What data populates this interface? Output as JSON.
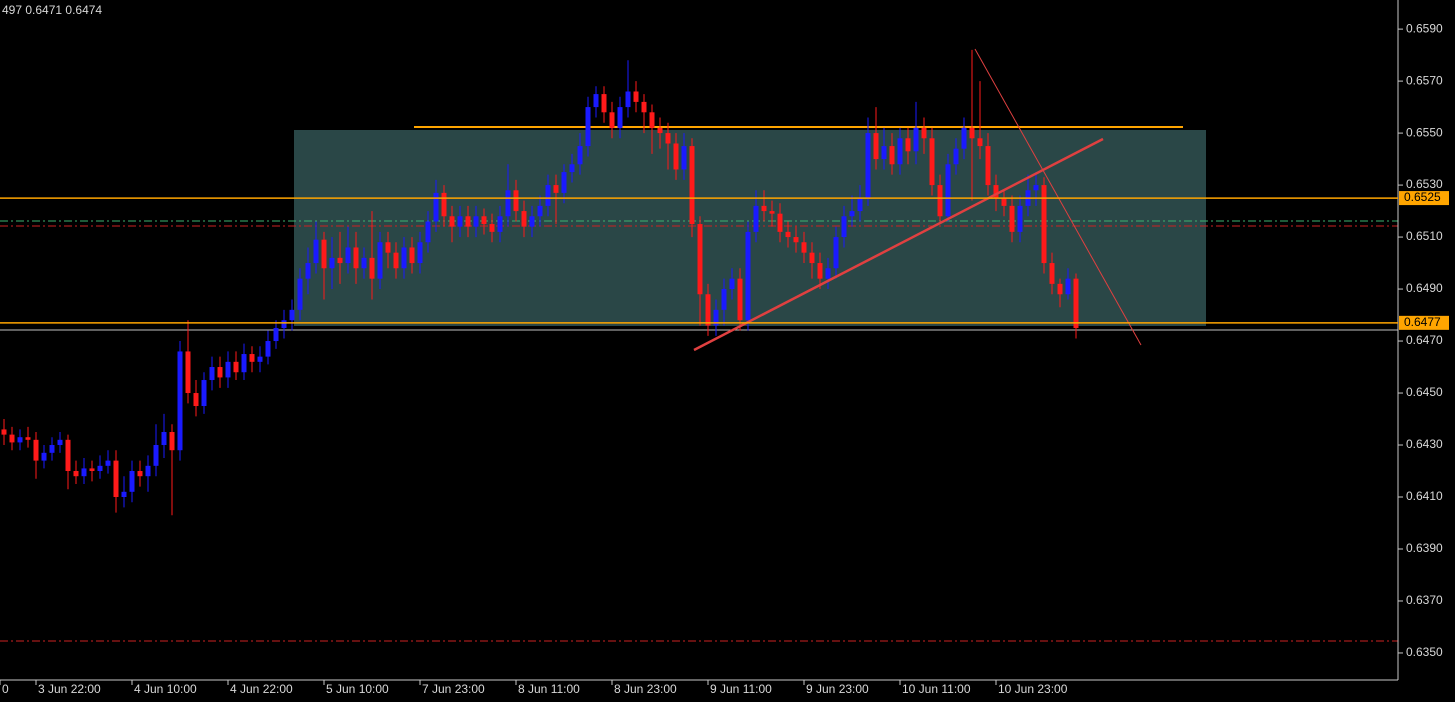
{
  "chart_data": {
    "type": "candlestick",
    "header": "497 0.6471 0.6474",
    "bull_color": "#1a1aff",
    "bear_color": "#ff1a1a",
    "ylim": [
      0.63396,
      0.66012
    ],
    "yticks": [
      {
        "value": 0.659,
        "label": "0.6590"
      },
      {
        "value": 0.657,
        "label": "0.6570"
      },
      {
        "value": 0.655,
        "label": "0.6550"
      },
      {
        "value": 0.653,
        "label": "0.6530"
      },
      {
        "value": 0.651,
        "label": "0.6510"
      },
      {
        "value": 0.649,
        "label": "0.6490"
      },
      {
        "value": 0.647,
        "label": "0.6470"
      },
      {
        "value": 0.645,
        "label": "0.6450"
      },
      {
        "value": 0.643,
        "label": "0.6430"
      },
      {
        "value": 0.641,
        "label": "0.6410"
      },
      {
        "value": 0.639,
        "label": "0.6390"
      },
      {
        "value": 0.637,
        "label": "0.6370"
      },
      {
        "value": 0.635,
        "label": "0.6350"
      }
    ],
    "xticks": [
      {
        "value": -0.5,
        "label": "0"
      },
      {
        "value": 4,
        "label": "3 Jun 22:00"
      },
      {
        "value": 16,
        "label": "4 Jun 10:00"
      },
      {
        "value": 28,
        "label": "4 Jun 22:00"
      },
      {
        "value": 40,
        "label": "5 Jun 10:00"
      },
      {
        "value": 52,
        "label": "7 Jun 23:00"
      },
      {
        "value": 64,
        "label": "8 Jun 11:00"
      },
      {
        "value": 76,
        "label": "8 Jun 23:00"
      },
      {
        "value": 88,
        "label": "9 Jun 11:00"
      },
      {
        "value": 100,
        "label": "9 Jun 23:00"
      },
      {
        "value": 112,
        "label": "10 Jun 11:00"
      },
      {
        "value": 124,
        "label": "10 Jun 23:00"
      }
    ],
    "price_lines": [
      0.6525,
      0.6477
    ],
    "price_line_color": "#ffa500",
    "open": [
      0.6436,
      0.6434,
      0.6431,
      0.6433,
      0.6432,
      0.6424,
      0.6427,
      0.643,
      0.6432,
      0.642,
      0.6418,
      0.6421,
      0.642,
      0.6422,
      0.6424,
      0.641,
      0.6412,
      0.642,
      0.6418,
      0.6422,
      0.643,
      0.6435,
      0.6428,
      0.6466,
      0.645,
      0.6445,
      0.6455,
      0.646,
      0.6456,
      0.6462,
      0.6458,
      0.6465,
      0.6462,
      0.6464,
      0.647,
      0.6475,
      0.6478,
      0.6482,
      0.6494,
      0.65,
      0.6509,
      0.6498,
      0.6502,
      0.65,
      0.6506,
      0.6498,
      0.6502,
      0.6494,
      0.6508,
      0.6504,
      0.6498,
      0.6506,
      0.65,
      0.6508,
      0.6516,
      0.6527,
      0.6518,
      0.6514,
      0.6518,
      0.6514,
      0.6518,
      0.6515,
      0.6512,
      0.6518,
      0.6528,
      0.652,
      0.6514,
      0.6518,
      0.6522,
      0.653,
      0.6527,
      0.6535,
      0.6538,
      0.6545,
      0.656,
      0.6565,
      0.6558,
      0.6552,
      0.656,
      0.6566,
      0.6562,
      0.6558,
      0.6552,
      0.655,
      0.6546,
      0.6536,
      0.6545,
      0.6515,
      0.6488,
      0.6476,
      0.6482,
      0.649,
      0.6494,
      0.6478,
      0.6512,
      0.6522,
      0.652,
      0.6519,
      0.6512,
      0.651,
      0.6508,
      0.6504,
      0.65,
      0.6494,
      0.6498,
      0.651,
      0.6518,
      0.652,
      0.6525,
      0.655,
      0.654,
      0.6545,
      0.6538,
      0.6548,
      0.6543,
      0.6552,
      0.6548,
      0.653,
      0.6518,
      0.6538,
      0.6544,
      0.6552,
      0.6548,
      0.6545,
      0.653,
      0.6525,
      0.6522,
      0.6512,
      0.6522,
      0.6528,
      0.653,
      0.65,
      0.6492,
      0.6488,
      0.6494
    ],
    "high": [
      0.644,
      0.6437,
      0.6436,
      0.6437,
      0.6435,
      0.643,
      0.6433,
      0.6435,
      0.6434,
      0.6424,
      0.6425,
      0.6424,
      0.6426,
      0.6428,
      0.6428,
      0.6418,
      0.6424,
      0.6424,
      0.6426,
      0.6438,
      0.6442,
      0.6438,
      0.647,
      0.6478,
      0.6455,
      0.6458,
      0.6464,
      0.6464,
      0.6466,
      0.6466,
      0.6469,
      0.6468,
      0.6468,
      0.6474,
      0.6478,
      0.6482,
      0.6486,
      0.6498,
      0.6506,
      0.6516,
      0.6512,
      0.651,
      0.6512,
      0.6514,
      0.6512,
      0.6506,
      0.652,
      0.6512,
      0.6512,
      0.6508,
      0.651,
      0.651,
      0.6512,
      0.652,
      0.6532,
      0.653,
      0.6522,
      0.6522,
      0.6522,
      0.6522,
      0.6521,
      0.6519,
      0.6522,
      0.6538,
      0.6532,
      0.6524,
      0.6522,
      0.6526,
      0.6534,
      0.6534,
      0.6538,
      0.6542,
      0.655,
      0.6564,
      0.6568,
      0.6568,
      0.6562,
      0.6564,
      0.6578,
      0.657,
      0.6565,
      0.6561,
      0.6556,
      0.6554,
      0.655,
      0.655,
      0.6548,
      0.6518,
      0.6492,
      0.6486,
      0.6494,
      0.6498,
      0.6498,
      0.6516,
      0.6528,
      0.6528,
      0.6524,
      0.6523,
      0.6516,
      0.6514,
      0.6512,
      0.6508,
      0.6504,
      0.6502,
      0.6514,
      0.6522,
      0.6526,
      0.653,
      0.6556,
      0.656,
      0.6552,
      0.655,
      0.6552,
      0.6552,
      0.6562,
      0.6556,
      0.6552,
      0.6534,
      0.6542,
      0.6548,
      0.6556,
      0.6582,
      0.657,
      0.655,
      0.6534,
      0.6528,
      0.6526,
      0.6526,
      0.6534,
      0.6535,
      0.6533,
      0.6504,
      0.6494,
      0.6498,
      0.6496
    ],
    "low": [
      0.643,
      0.6428,
      0.6428,
      0.6429,
      0.6417,
      0.6421,
      0.6424,
      0.6427,
      0.6413,
      0.6415,
      0.6415,
      0.6416,
      0.6417,
      0.6419,
      0.6404,
      0.6406,
      0.6408,
      0.6414,
      0.6412,
      0.6418,
      0.6425,
      0.6403,
      0.6424,
      0.6446,
      0.6441,
      0.6442,
      0.6451,
      0.6452,
      0.6452,
      0.6455,
      0.6455,
      0.6458,
      0.6458,
      0.6461,
      0.6467,
      0.6471,
      0.6474,
      0.6478,
      0.6488,
      0.6496,
      0.6486,
      0.649,
      0.6492,
      0.6496,
      0.6492,
      0.6494,
      0.6486,
      0.649,
      0.6498,
      0.6494,
      0.6494,
      0.6496,
      0.6496,
      0.6504,
      0.6512,
      0.6514,
      0.6508,
      0.651,
      0.651,
      0.651,
      0.6511,
      0.6508,
      0.6508,
      0.6514,
      0.6516,
      0.651,
      0.651,
      0.6514,
      0.6518,
      0.6515,
      0.6523,
      0.6531,
      0.6534,
      0.6541,
      0.6556,
      0.6554,
      0.6548,
      0.6548,
      0.6556,
      0.6558,
      0.655,
      0.6542,
      0.6544,
      0.6536,
      0.6532,
      0.6532,
      0.651,
      0.6476,
      0.6472,
      0.6472,
      0.6476,
      0.6486,
      0.6474,
      0.6474,
      0.6508,
      0.6516,
      0.6514,
      0.6508,
      0.6506,
      0.6504,
      0.65,
      0.6494,
      0.649,
      0.649,
      0.6494,
      0.6506,
      0.6514,
      0.6516,
      0.6522,
      0.6536,
      0.6536,
      0.6534,
      0.6534,
      0.6538,
      0.6538,
      0.6542,
      0.6526,
      0.6516,
      0.6516,
      0.6534,
      0.654,
      0.6524,
      0.654,
      0.6526,
      0.652,
      0.6518,
      0.6508,
      0.6508,
      0.6518,
      0.6522,
      0.6496,
      0.6488,
      0.6483,
      0.6486,
      0.6471
    ],
    "close": [
      0.6434,
      0.6431,
      0.6433,
      0.6432,
      0.6424,
      0.6427,
      0.643,
      0.6432,
      0.642,
      0.6418,
      0.6421,
      0.642,
      0.6422,
      0.6424,
      0.641,
      0.6412,
      0.642,
      0.6418,
      0.6422,
      0.643,
      0.6435,
      0.6428,
      0.6466,
      0.645,
      0.6445,
      0.6455,
      0.646,
      0.6456,
      0.6462,
      0.6458,
      0.6465,
      0.6462,
      0.6464,
      0.647,
      0.6475,
      0.6478,
      0.6482,
      0.6494,
      0.65,
      0.6509,
      0.6498,
      0.6502,
      0.65,
      0.6506,
      0.6498,
      0.6502,
      0.6494,
      0.6508,
      0.6504,
      0.6498,
      0.6506,
      0.65,
      0.6508,
      0.6516,
      0.6527,
      0.6518,
      0.6514,
      0.6518,
      0.6514,
      0.6518,
      0.6515,
      0.6512,
      0.6518,
      0.6528,
      0.652,
      0.6514,
      0.6518,
      0.6522,
      0.653,
      0.6527,
      0.6535,
      0.6538,
      0.6545,
      0.656,
      0.6565,
      0.6558,
      0.6552,
      0.656,
      0.6566,
      0.6562,
      0.6558,
      0.6552,
      0.655,
      0.6546,
      0.6536,
      0.6545,
      0.6515,
      0.6488,
      0.6476,
      0.6482,
      0.649,
      0.6494,
      0.6478,
      0.6512,
      0.6522,
      0.652,
      0.6519,
      0.6512,
      0.651,
      0.6508,
      0.6504,
      0.65,
      0.6494,
      0.6498,
      0.651,
      0.6518,
      0.652,
      0.6525,
      0.655,
      0.654,
      0.6545,
      0.6538,
      0.6548,
      0.6543,
      0.6552,
      0.6548,
      0.653,
      0.6518,
      0.6538,
      0.6544,
      0.6552,
      0.6548,
      0.6545,
      0.653,
      0.6525,
      0.6522,
      0.6512,
      0.6522,
      0.6528,
      0.653,
      0.65,
      0.6492,
      0.6488,
      0.6494,
      0.6475
    ]
  }
}
